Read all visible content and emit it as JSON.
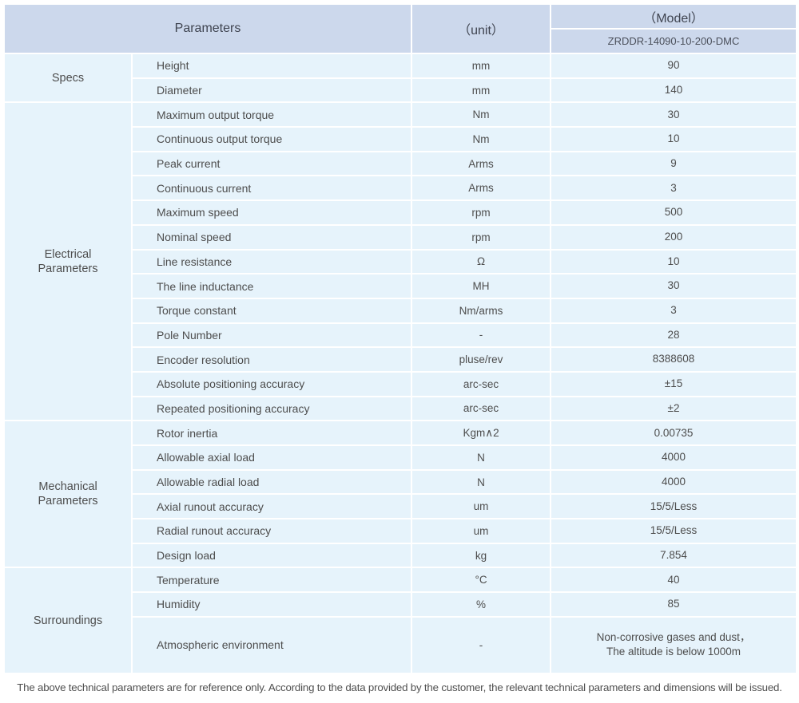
{
  "header": {
    "parameters_label": "Parameters",
    "unit_label": "（unit）",
    "model_label": "（Model）",
    "model_value": "ZRDDR-14090-10-200-DMC"
  },
  "groups": [
    {
      "name": "Specs",
      "rows": [
        {
          "param": "Height",
          "unit": "mm",
          "value": "90"
        },
        {
          "param": "Diameter",
          "unit": "mm",
          "value": "140"
        }
      ]
    },
    {
      "name": "Electrical\nParameters",
      "rows": [
        {
          "param": "Maximum output torque",
          "unit": "Nm",
          "value": "30"
        },
        {
          "param": "Continuous output torque",
          "unit": "Nm",
          "value": "10"
        },
        {
          "param": "Peak current",
          "unit": "Arms",
          "value": "9"
        },
        {
          "param": "Continuous current",
          "unit": "Arms",
          "value": "3"
        },
        {
          "param": "Maximum speed",
          "unit": "rpm",
          "value": "500"
        },
        {
          "param": "Nominal speed",
          "unit": "rpm",
          "value": "200"
        },
        {
          "param": "Line resistance",
          "unit": "Ω",
          "value": "10"
        },
        {
          "param": "The line inductance",
          "unit": "MH",
          "value": "30"
        },
        {
          "param": "Torque constant",
          "unit": "Nm/arms",
          "value": "3"
        },
        {
          "param": "Pole Number",
          "unit": "-",
          "value": "28"
        },
        {
          "param": "Encoder resolution",
          "unit": "pluse/rev",
          "value": "8388608"
        },
        {
          "param": "Absolute positioning accuracy",
          "unit": "arc-sec",
          "value": "±15"
        },
        {
          "param": "Repeated positioning accuracy",
          "unit": "arc-sec",
          "value": "±2"
        }
      ]
    },
    {
      "name": "Mechanical\nParameters",
      "rows": [
        {
          "param": "Rotor inertia",
          "unit": "Kgm∧2",
          "value": "0.00735"
        },
        {
          "param": "Allowable axial load",
          "unit": "N",
          "value": "4000"
        },
        {
          "param": "Allowable radial load",
          "unit": "N",
          "value": "4000"
        },
        {
          "param": "Axial runout accuracy",
          "unit": "um",
          "value": "15/5/Less"
        },
        {
          "param": "Radial runout accuracy",
          "unit": "um",
          "value": "15/5/Less"
        },
        {
          "param": "Design load",
          "unit": "kg",
          "value": "7.854"
        }
      ]
    },
    {
      "name": "Surroundings",
      "rows": [
        {
          "param": "Temperature",
          "unit": "°C",
          "value": "40"
        },
        {
          "param": "Humidity",
          "unit": "%",
          "value": "85"
        },
        {
          "param": "Atmospheric environment",
          "unit": "-",
          "value": "Non-corrosive gases and dust，\nThe altitude is below 1000m",
          "tall": true
        }
      ]
    }
  ],
  "footer_note": "The above technical parameters are for reference only. According to the data provided by the customer, the relevant technical parameters and dimensions will be issued.",
  "colors": {
    "header_bg": "#ccd8ec",
    "row_bg": "#e6f3fb",
    "separator": "#ffffff",
    "body_text": "#4d4d4d",
    "footer_text": "#4f4f4f"
  }
}
